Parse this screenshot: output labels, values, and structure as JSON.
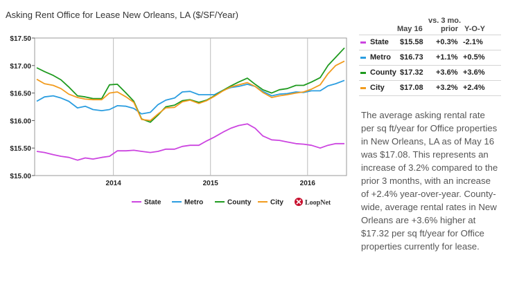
{
  "chart_data": {
    "type": "line",
    "title": "Asking Rent Office for Lease New Orleans, LA ($/SF/Year)",
    "ylim": [
      15.0,
      17.5
    ],
    "yticks": [
      "$15.00",
      "$15.50",
      "$16.00",
      "$16.50",
      "$17.00",
      "$17.50"
    ],
    "ytick_values": [
      15.0,
      15.5,
      16.0,
      16.5,
      17.0,
      17.5
    ],
    "x_start": 2013.21,
    "x_end": 2016.38,
    "xticks": [
      "2014",
      "2015",
      "2016"
    ],
    "xtick_values": [
      2014,
      2015,
      2016
    ],
    "x": [
      2013.21,
      2013.29,
      2013.38,
      2013.46,
      2013.54,
      2013.63,
      2013.71,
      2013.79,
      2013.88,
      2013.96,
      2014.04,
      2014.13,
      2014.21,
      2014.29,
      2014.38,
      2014.46,
      2014.54,
      2014.63,
      2014.71,
      2014.79,
      2014.88,
      2014.96,
      2015.04,
      2015.13,
      2015.21,
      2015.29,
      2015.38,
      2015.46,
      2015.54,
      2015.63,
      2015.71,
      2015.79,
      2015.88,
      2015.96,
      2016.04,
      2016.13,
      2016.21,
      2016.29,
      2016.38
    ],
    "series": [
      {
        "name": "State",
        "color": "#cc44e0",
        "values": [
          15.44,
          15.42,
          15.38,
          15.35,
          15.33,
          15.28,
          15.32,
          15.3,
          15.33,
          15.35,
          15.45,
          15.45,
          15.46,
          15.44,
          15.42,
          15.44,
          15.48,
          15.48,
          15.53,
          15.55,
          15.55,
          15.63,
          15.7,
          15.79,
          15.86,
          15.91,
          15.94,
          15.86,
          15.72,
          15.65,
          15.64,
          15.61,
          15.58,
          15.57,
          15.55,
          15.5,
          15.55,
          15.58,
          15.58
        ]
      },
      {
        "name": "Metro",
        "color": "#2a9de0",
        "values": [
          16.35,
          16.43,
          16.45,
          16.41,
          16.35,
          16.23,
          16.26,
          16.2,
          16.18,
          16.2,
          16.27,
          16.26,
          16.22,
          16.12,
          16.15,
          16.29,
          16.37,
          16.41,
          16.52,
          16.53,
          16.47,
          16.47,
          16.47,
          16.55,
          16.6,
          16.62,
          16.66,
          16.62,
          16.53,
          16.45,
          16.48,
          16.49,
          16.52,
          16.51,
          16.54,
          16.54,
          16.63,
          16.67,
          16.73
        ]
      },
      {
        "name": "County",
        "color": "#1e9a1e",
        "values": [
          16.96,
          16.89,
          16.82,
          16.74,
          16.61,
          16.45,
          16.43,
          16.4,
          16.4,
          16.65,
          16.66,
          16.5,
          16.35,
          16.03,
          15.97,
          16.1,
          16.25,
          16.28,
          16.36,
          16.38,
          16.33,
          16.37,
          16.45,
          16.55,
          16.63,
          16.7,
          16.77,
          16.66,
          16.56,
          16.5,
          16.56,
          16.58,
          16.64,
          16.64,
          16.7,
          16.78,
          17.0,
          17.15,
          17.32
        ]
      },
      {
        "name": "City",
        "color": "#f29b1d",
        "values": [
          16.75,
          16.67,
          16.64,
          16.58,
          16.48,
          16.42,
          16.39,
          16.38,
          16.38,
          16.5,
          16.52,
          16.43,
          16.33,
          16.02,
          16.0,
          16.12,
          16.23,
          16.24,
          16.34,
          16.37,
          16.31,
          16.36,
          16.44,
          16.54,
          16.61,
          16.65,
          16.69,
          16.62,
          16.51,
          16.42,
          16.45,
          16.47,
          16.5,
          16.52,
          16.57,
          16.65,
          16.85,
          17.0,
          17.08
        ]
      }
    ],
    "legend": [
      "State",
      "Metro",
      "County",
      "City"
    ],
    "grid": "vertical-at-year-ticks"
  },
  "branding": {
    "logo_text": "LoopNet",
    "logo_mark": "loopnet-logo"
  },
  "stats_table": {
    "header_vs": "vs. 3 mo.",
    "header_date": "May 16",
    "header_prior": "prior",
    "header_yoy": "Y-O-Y",
    "rows": [
      {
        "name": "State",
        "value": "$15.58",
        "change_3mo": "+0.3%",
        "change_yoy": "-2.1%",
        "color": "#cc44e0"
      },
      {
        "name": "Metro",
        "value": "$16.73",
        "change_3mo": "+1.1%",
        "change_yoy": "+0.5%",
        "color": "#2a9de0"
      },
      {
        "name": "County",
        "value": "$17.32",
        "change_3mo": "+3.6%",
        "change_yoy": "+3.6%",
        "color": "#1e9a1e"
      },
      {
        "name": "City",
        "value": "$17.08",
        "change_3mo": "+3.2%",
        "change_yoy": "+2.4%",
        "color": "#f29b1d"
      }
    ]
  },
  "summary_text": "The average asking rental rate per sq ft/year for Office properties in New Orleans, LA as of May 16 was $17.08. This represents an increase of 3.2% compared to the prior 3 months, with an increase of +2.4% year-over-year. County-wide, average rental rates in New Orleans are +3.6% higher at $17.32 per sq ft/year for Office properties currently for lease."
}
